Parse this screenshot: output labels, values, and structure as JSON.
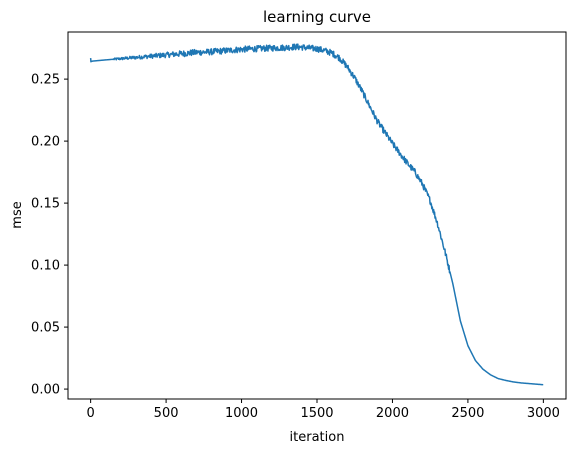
{
  "chart_data": {
    "type": "line",
    "title": "learning curve",
    "xlabel": "iteration",
    "ylabel": "mse",
    "xlim": [
      -150,
      3150
    ],
    "ylim": [
      -0.008,
      0.288
    ],
    "xticks": [
      0,
      500,
      1000,
      1500,
      2000,
      2500,
      3000
    ],
    "xtick_labels": [
      "0",
      "500",
      "1000",
      "1500",
      "2000",
      "2500",
      "3000"
    ],
    "yticks": [
      0.0,
      0.05,
      0.1,
      0.15,
      0.2,
      0.25
    ],
    "ytick_labels": [
      "0.00",
      "0.05",
      "0.10",
      "0.15",
      "0.20",
      "0.25"
    ],
    "grid": false,
    "series": [
      {
        "color": "#1f77b4",
        "x": [
          0,
          2,
          10,
          100,
          200,
          300,
          400,
          500,
          600,
          700,
          800,
          900,
          1000,
          1100,
          1200,
          1300,
          1350,
          1400,
          1450,
          1500,
          1550,
          1600,
          1650,
          1700,
          1750,
          1800,
          1850,
          1900,
          1950,
          2000,
          2050,
          2100,
          2150,
          2200,
          2250,
          2300,
          2350,
          2380,
          2400,
          2420,
          2450,
          2500,
          2550,
          2600,
          2650,
          2700,
          2750,
          2800,
          2850,
          2900,
          2950,
          3000
        ],
        "y": [
          0.267,
          0.264,
          0.2645,
          0.2655,
          0.2665,
          0.2675,
          0.2685,
          0.2695,
          0.2705,
          0.2715,
          0.272,
          0.273,
          0.274,
          0.2745,
          0.275,
          0.2755,
          0.276,
          0.2758,
          0.275,
          0.2745,
          0.273,
          0.271,
          0.267,
          0.26,
          0.251,
          0.24,
          0.228,
          0.216,
          0.207,
          0.198,
          0.19,
          0.182,
          0.175,
          0.165,
          0.152,
          0.133,
          0.11,
          0.095,
          0.085,
          0.073,
          0.055,
          0.035,
          0.023,
          0.016,
          0.0115,
          0.0085,
          0.007,
          0.0058,
          0.005,
          0.0045,
          0.004,
          0.0035
        ],
        "noise_start": 150,
        "noise_end": 2380,
        "noise_amplitude": 0.0025
      }
    ]
  }
}
